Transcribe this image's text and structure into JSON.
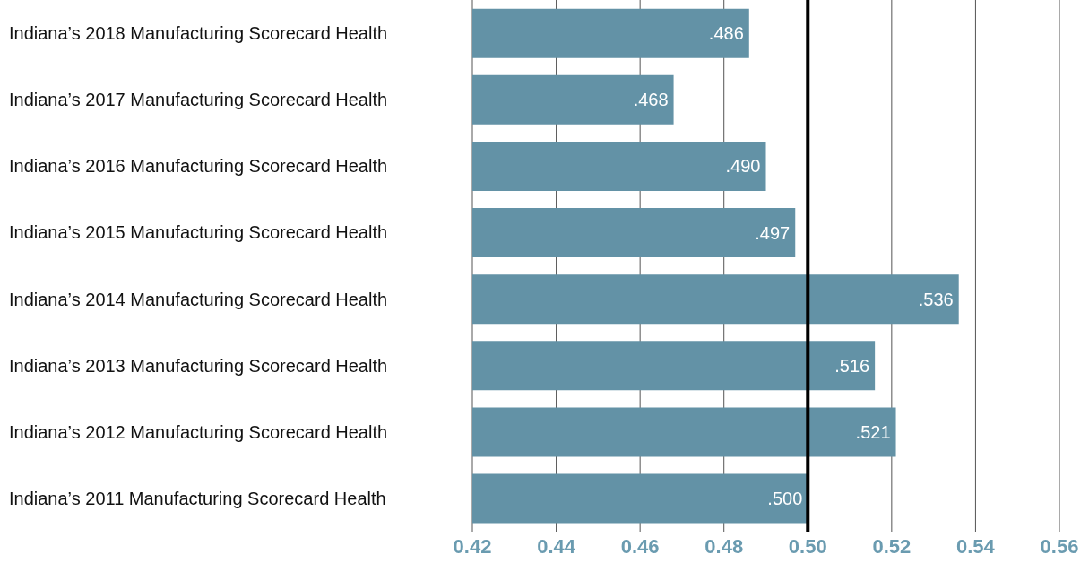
{
  "chart_data": {
    "type": "bar",
    "orientation": "horizontal",
    "categories": [
      "Indiana’s 2018 Manufacturing Scorecard Health",
      "Indiana’s 2017 Manufacturing Scorecard Health",
      "Indiana’s 2016 Manufacturing Scorecard Health",
      "Indiana’s 2015 Manufacturing Scorecard Health",
      "Indiana’s 2014 Manufacturing Scorecard Health",
      "Indiana’s 2013 Manufacturing Scorecard Health",
      "Indiana’s 2012 Manufacturing Scorecard Health",
      "Indiana’s 2011 Manufacturing Scorecard Health"
    ],
    "values": [
      0.486,
      0.468,
      0.49,
      0.497,
      0.536,
      0.516,
      0.521,
      0.5
    ],
    "value_labels": [
      ".486",
      ".468",
      ".490",
      ".497",
      ".536",
      ".516",
      ".521",
      ".500"
    ],
    "color": "#6392a6",
    "xlim": [
      0.42,
      0.56
    ],
    "xticks": [
      0.42,
      0.44,
      0.46,
      0.48,
      {
        "value": 0.5,
        "label": "0.50"
      },
      0.52,
      0.54,
      0.56
    ],
    "ref_lines": [
      {
        "axis": "x",
        "value": 0.5,
        "color": "#000000"
      }
    ],
    "grid": "x"
  }
}
